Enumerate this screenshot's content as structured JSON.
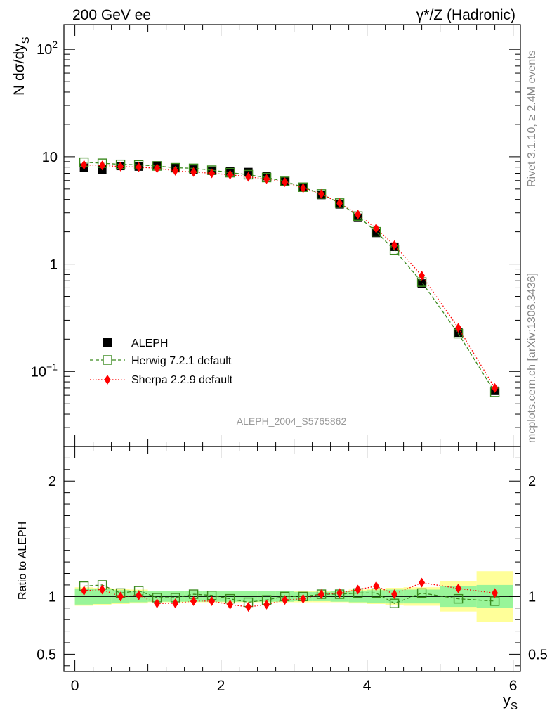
{
  "header": {
    "left_title": "200 GeV ee",
    "right_title": "γ*/Z (Hadronic)"
  },
  "side_labels": {
    "rivet": "Rivet 3.1.10, ≥ 2.4M events",
    "mcplots": "mcplots.cern.ch [arXiv:1306.3436]"
  },
  "watermark": "ALEPH_2004_S5765862",
  "colors": {
    "data": "#000000",
    "herwig": "#3a8a1e",
    "sherpa": "#ff0000",
    "band_inner": "#99f599",
    "band_outer": "#ffff99"
  },
  "chart_data": [
    {
      "id": "main",
      "type": "scatter",
      "scale": "log",
      "ylabel": "N dσ/dy",
      "ylabel_sub": "S",
      "ylim": [
        0.02,
        170
      ],
      "xlim": [
        -0.15,
        6.1
      ],
      "y_ticks": [
        {
          "value": 100,
          "label": "10",
          "sup": "2"
        },
        {
          "value": 10,
          "label": "10",
          "sup": ""
        },
        {
          "value": 1,
          "label": "1",
          "sup": ""
        },
        {
          "value": 0.1,
          "label": "10",
          "sup": "−1"
        }
      ],
      "legend": {
        "placement": "bottom-left",
        "entries": [
          "ALEPH",
          "Herwig 7.2.1 default",
          "Sherpa 2.2.9 default"
        ]
      },
      "x": [
        0.125,
        0.375,
        0.625,
        0.875,
        1.125,
        1.375,
        1.625,
        1.875,
        2.125,
        2.375,
        2.625,
        2.875,
        3.125,
        3.375,
        3.625,
        3.875,
        4.125,
        4.375,
        4.75,
        5.25,
        5.75
      ],
      "series": [
        {
          "name": "ALEPH",
          "marker": "filled-square",
          "values": [
            7.9,
            7.6,
            8.2,
            8.1,
            8.3,
            7.9,
            7.6,
            7.4,
            7.3,
            7.2,
            6.6,
            5.9,
            5.2,
            4.4,
            3.6,
            2.7,
            1.95,
            1.45,
            0.66,
            0.23,
            0.066
          ]
        },
        {
          "name": "Herwig 7.2.1 default",
          "marker": "open-square",
          "line": "dashed",
          "values": [
            8.9,
            8.7,
            8.5,
            8.4,
            8.2,
            7.9,
            7.8,
            7.5,
            7.1,
            6.8,
            6.4,
            5.9,
            5.2,
            4.5,
            3.7,
            2.8,
            2.0,
            1.35,
            0.68,
            0.225,
            0.064
          ]
        },
        {
          "name": "Sherpa 2.2.9 default",
          "marker": "filled-diamond",
          "line": "dotted",
          "values": [
            8.4,
            8.3,
            8.1,
            8.0,
            7.8,
            7.4,
            7.2,
            7.0,
            6.8,
            6.5,
            6.2,
            5.8,
            5.1,
            4.5,
            3.7,
            2.9,
            2.15,
            1.5,
            0.78,
            0.255,
            0.07
          ]
        }
      ]
    },
    {
      "id": "ratio",
      "type": "scatter",
      "scale": "linear",
      "ylabel": "Ratio to ALEPH",
      "xlabel": "y",
      "xlabel_sub": "S",
      "ylim": [
        0.35,
        2.3
      ],
      "xlim": [
        -0.15,
        6.1
      ],
      "x_ticks": [
        0,
        2,
        4,
        6
      ],
      "y_ticks": [
        0.5,
        1,
        2
      ],
      "bins": [
        [
          0,
          0.25
        ],
        [
          0.25,
          0.5
        ],
        [
          0.5,
          0.75
        ],
        [
          0.75,
          1.0
        ],
        [
          1.0,
          1.25
        ],
        [
          1.25,
          1.5
        ],
        [
          1.5,
          1.75
        ],
        [
          1.75,
          2.0
        ],
        [
          2.0,
          2.25
        ],
        [
          2.25,
          2.5
        ],
        [
          2.5,
          2.75
        ],
        [
          2.75,
          3.0
        ],
        [
          3.0,
          3.25
        ],
        [
          3.25,
          3.5
        ],
        [
          3.5,
          3.75
        ],
        [
          3.75,
          4.0
        ],
        [
          4.0,
          4.25
        ],
        [
          4.25,
          4.5
        ],
        [
          4.5,
          5.0
        ],
        [
          5.0,
          5.5
        ],
        [
          5.5,
          6.0
        ]
      ],
      "band_inner": [
        0.07,
        0.065,
        0.055,
        0.05,
        0.045,
        0.045,
        0.045,
        0.045,
        0.045,
        0.045,
        0.045,
        0.045,
        0.04,
        0.04,
        0.045,
        0.05,
        0.055,
        0.06,
        0.06,
        0.09,
        0.1
      ],
      "band_outer": [
        0.08,
        0.075,
        0.065,
        0.06,
        0.05,
        0.05,
        0.05,
        0.05,
        0.05,
        0.05,
        0.05,
        0.05,
        0.05,
        0.05,
        0.05,
        0.06,
        0.065,
        0.075,
        0.08,
        0.13,
        0.22
      ],
      "x": [
        0.125,
        0.375,
        0.625,
        0.875,
        1.125,
        1.375,
        1.625,
        1.875,
        2.125,
        2.375,
        2.625,
        2.875,
        3.125,
        3.375,
        3.625,
        3.875,
        4.125,
        4.375,
        4.75,
        5.25,
        5.75
      ],
      "series": [
        {
          "name": "Herwig 7.2.1 default",
          "marker": "open-square",
          "line": "dashed",
          "values": [
            1.09,
            1.1,
            1.03,
            1.05,
            0.99,
            0.99,
            1.02,
            1.01,
            0.98,
            0.95,
            0.97,
            1.0,
            1.0,
            1.02,
            1.02,
            1.03,
            1.03,
            0.94,
            1.03,
            0.98,
            0.96
          ]
        },
        {
          "name": "Sherpa 2.2.9 default",
          "marker": "filled-diamond",
          "line": "dotted",
          "values": [
            1.05,
            1.06,
            1.0,
            1.01,
            0.94,
            0.94,
            0.96,
            0.96,
            0.93,
            0.91,
            0.93,
            0.97,
            0.98,
            1.02,
            1.03,
            1.06,
            1.09,
            1.02,
            1.12,
            1.07,
            1.03
          ]
        }
      ]
    }
  ]
}
